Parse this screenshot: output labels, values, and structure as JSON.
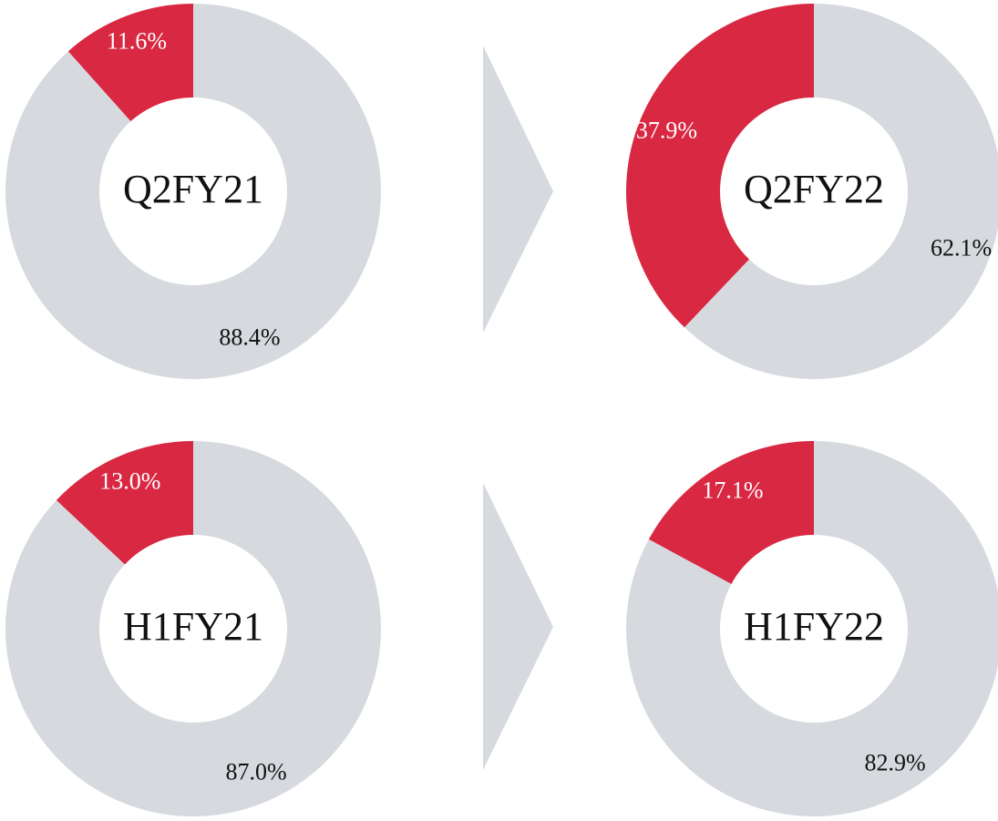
{
  "chart_data": [
    {
      "type": "donut",
      "title": "Q2FY21",
      "categories": [
        null,
        null
      ],
      "values": [
        11.6,
        88.4
      ],
      "value_labels": [
        "11.6%",
        "88.4%"
      ],
      "colors": [
        "#d92842",
        "#d6dadf"
      ]
    },
    {
      "type": "donut",
      "title": "Q2FY22",
      "categories": [
        null,
        null
      ],
      "values": [
        37.9,
        62.1
      ],
      "value_labels": [
        "37.9%",
        "62.1%"
      ],
      "colors": [
        "#d92842",
        "#d6dadf"
      ]
    },
    {
      "type": "donut",
      "title": "H1FY21",
      "categories": [
        null,
        null
      ],
      "values": [
        13.0,
        87.0
      ],
      "value_labels": [
        "13.0%",
        "87.0%"
      ],
      "colors": [
        "#d92842",
        "#d6dadf"
      ]
    },
    {
      "type": "donut",
      "title": "H1FY22",
      "categories": [
        null,
        null
      ],
      "values": [
        17.1,
        82.9
      ],
      "value_labels": [
        "17.1%",
        "82.9%"
      ],
      "colors": [
        "#d92842",
        "#d6dadf"
      ]
    }
  ]
}
